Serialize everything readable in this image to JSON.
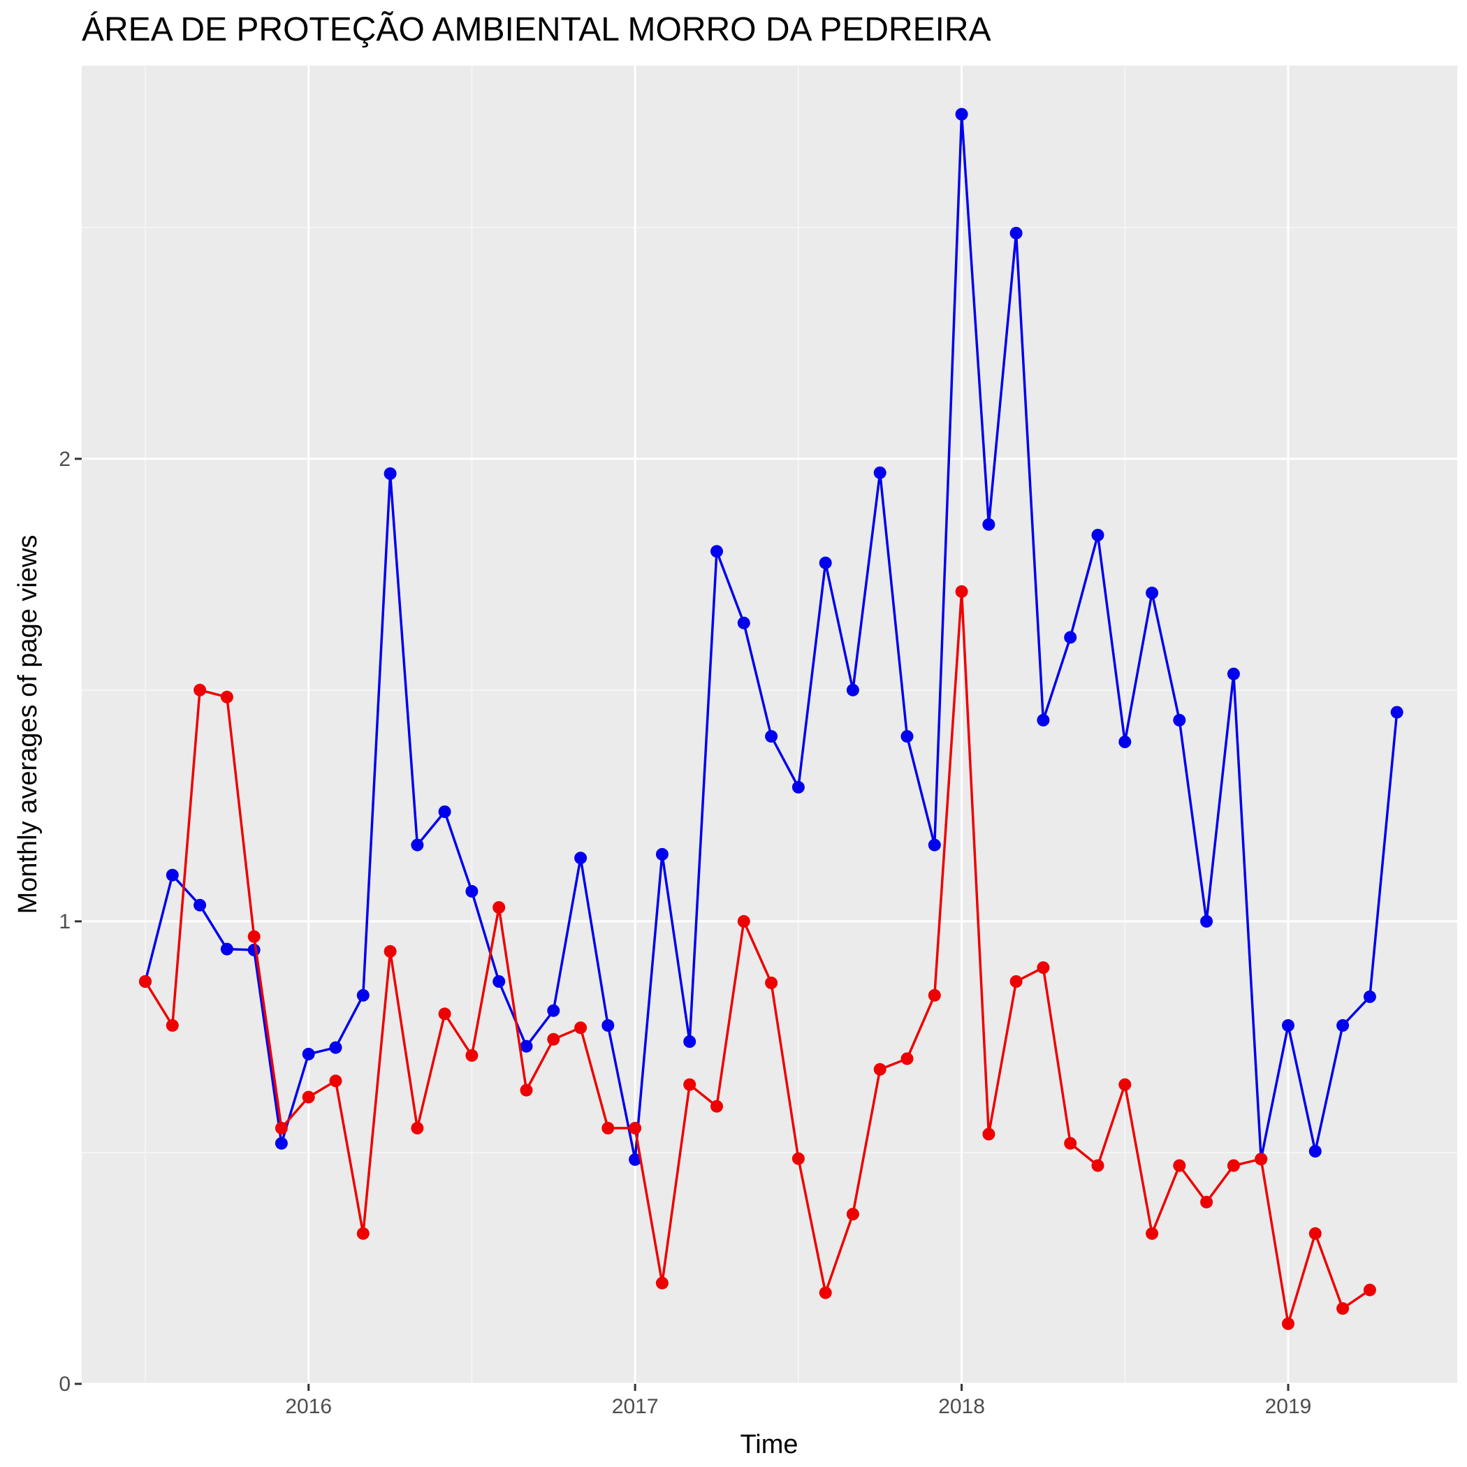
{
  "chart_data": {
    "type": "line",
    "title": "ÁREA DE PROTEÇÃO AMBIENTAL MORRO DA PEDREIRA",
    "xlabel": "Time",
    "ylabel": "Monthly averages of page views",
    "xlim": [
      2015.5,
      2019.47
    ],
    "ylim": [
      0,
      2.85
    ],
    "x_ticks": [
      {
        "value": 2016,
        "label": "2016"
      },
      {
        "value": 2017,
        "label": "2017"
      },
      {
        "value": 2018,
        "label": "2018"
      },
      {
        "value": 2019,
        "label": "2019"
      }
    ],
    "y_ticks": [
      {
        "value": 0,
        "label": "0"
      },
      {
        "value": 1,
        "label": "1"
      },
      {
        "value": 2,
        "label": "2"
      }
    ],
    "grid": true,
    "legend": "none",
    "colors": {
      "panel_background": "#ebebeb",
      "grid_major": "#ffffff",
      "grid_minor": "#f5f5f5",
      "tick_mark": "#333333",
      "tick_label": "#4d4d4d"
    },
    "series": [
      {
        "name": "blue",
        "color": "#0000ee",
        "x": [
          2015.5,
          2015.583,
          2015.667,
          2015.75,
          2015.833,
          2015.917,
          2016.0,
          2016.083,
          2016.167,
          2016.25,
          2016.333,
          2016.417,
          2016.5,
          2016.583,
          2016.667,
          2016.75,
          2016.833,
          2016.917,
          2017.0,
          2017.083,
          2017.167,
          2017.25,
          2017.333,
          2017.417,
          2017.5,
          2017.583,
          2017.667,
          2017.75,
          2017.833,
          2017.917,
          2018.0,
          2018.083,
          2018.167,
          2018.25,
          2018.333,
          2018.417,
          2018.5,
          2018.583,
          2018.667,
          2018.75,
          2018.833,
          2018.917,
          2019.0,
          2019.083,
          2019.167,
          2019.25,
          2019.333
        ],
        "values": [
          0.87,
          1.1,
          1.035,
          0.94,
          0.938,
          0.52,
          0.713,
          0.727,
          0.84,
          1.968,
          1.165,
          1.237,
          1.065,
          0.87,
          0.73,
          0.807,
          1.137,
          0.775,
          0.485,
          1.145,
          0.74,
          1.8,
          1.645,
          1.4,
          1.29,
          1.775,
          1.5,
          1.97,
          1.4,
          1.165,
          2.745,
          1.858,
          2.488,
          1.435,
          1.614,
          1.835,
          1.388,
          1.71,
          1.435,
          1.0,
          1.535,
          0.486,
          0.775,
          0.503,
          0.775,
          0.837,
          1.452
        ]
      },
      {
        "name": "red",
        "color": "#ee0000",
        "x": [
          2015.5,
          2015.583,
          2015.667,
          2015.75,
          2015.833,
          2015.917,
          2016.0,
          2016.083,
          2016.167,
          2016.25,
          2016.333,
          2016.417,
          2016.5,
          2016.583,
          2016.667,
          2016.75,
          2016.833,
          2016.917,
          2017.0,
          2017.083,
          2017.167,
          2017.25,
          2017.333,
          2017.417,
          2017.5,
          2017.583,
          2017.667,
          2017.75,
          2017.833,
          2017.917,
          2018.0,
          2018.083,
          2018.167,
          2018.25,
          2018.333,
          2018.417,
          2018.5,
          2018.583,
          2018.667,
          2018.75,
          2018.833,
          2018.917,
          2019.0,
          2019.083,
          2019.167,
          2019.25
        ],
        "values": [
          0.87,
          0.775,
          1.5,
          1.485,
          0.967,
          0.553,
          0.62,
          0.655,
          0.325,
          0.935,
          0.553,
          0.8,
          0.71,
          1.03,
          0.635,
          0.745,
          0.77,
          0.553,
          0.553,
          0.218,
          0.647,
          0.6,
          1.0,
          0.867,
          0.487,
          0.197,
          0.367,
          0.68,
          0.703,
          0.84,
          1.713,
          0.54,
          0.87,
          0.9,
          0.52,
          0.472,
          0.647,
          0.325,
          0.472,
          0.393,
          0.472,
          0.486,
          0.13,
          0.325,
          0.163,
          0.203
        ]
      }
    ]
  }
}
